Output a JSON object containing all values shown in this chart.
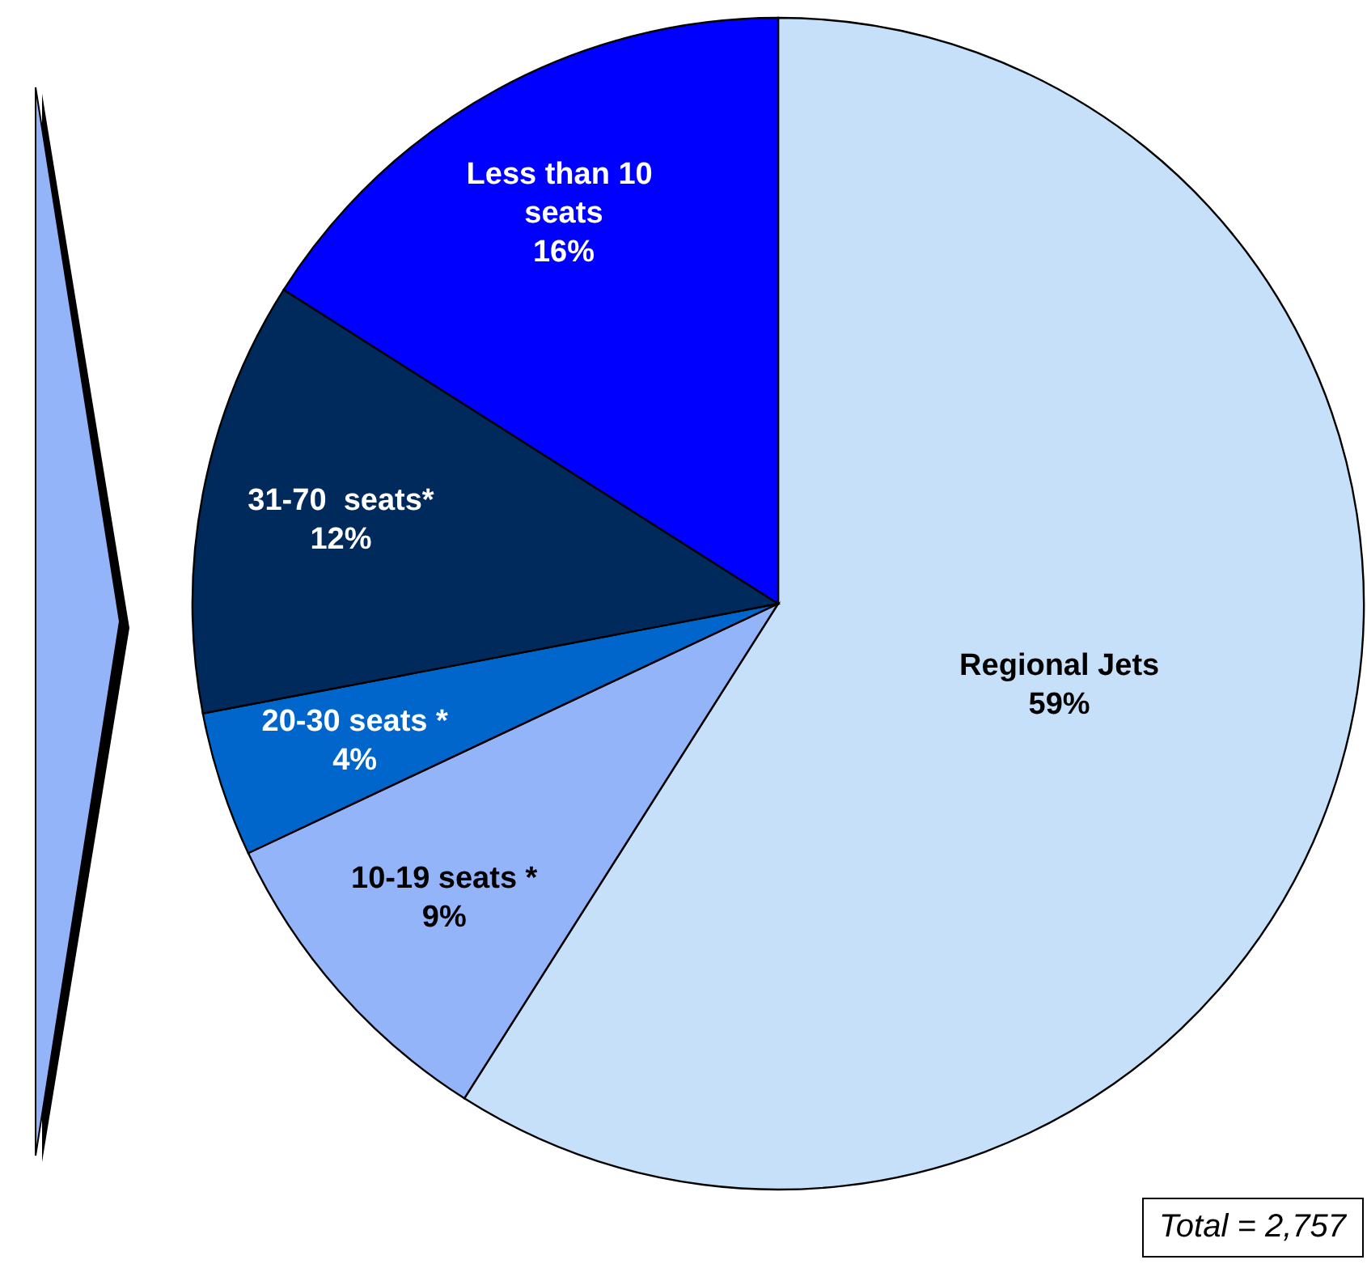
{
  "chart_data": {
    "type": "pie",
    "categories": [
      "Regional Jets",
      "10-19 seats *",
      "20-30 seats *",
      "31-70  seats*",
      "Less than 10 seats"
    ],
    "values": [
      59,
      9,
      4,
      12,
      16
    ],
    "colors": [
      "#c6e0fa",
      "#94b4fa",
      "#0066cc",
      "#002a5c",
      "#0000ff"
    ],
    "annotations": [
      "Total = 2,757"
    ],
    "value_labels": [
      "59%",
      "9%",
      "4%",
      "12%",
      "16%"
    ]
  }
}
